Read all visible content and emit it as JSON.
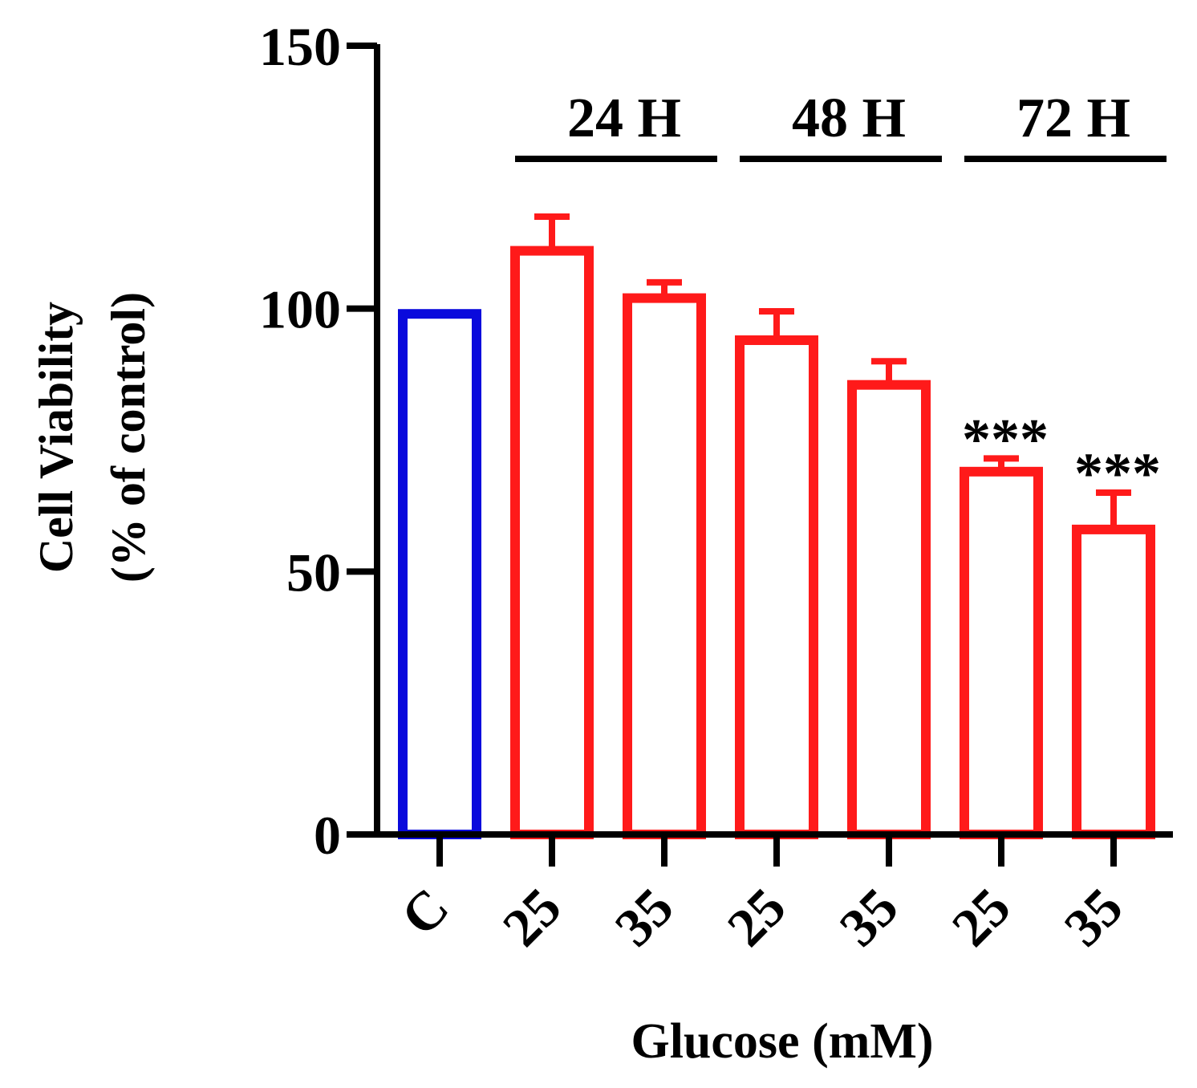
{
  "chart_data": {
    "type": "bar",
    "title": "",
    "ylabel_line1": "Cell Viability",
    "ylabel_line2": "(% of control)",
    "xlabel": "Glucose (mM)",
    "ylim": [
      0,
      150
    ],
    "yticks": [
      "0",
      "50",
      "100",
      "150"
    ],
    "categories": [
      "C",
      "25",
      "35",
      "25",
      "35",
      "25",
      "35"
    ],
    "values": [
      99,
      111,
      102,
      94,
      85.5,
      69,
      58
    ],
    "errors": [
      0,
      6.5,
      3,
      5.5,
      4.5,
      2.5,
      7
    ],
    "significance": [
      "",
      "",
      "",
      "",
      "",
      "***",
      "***"
    ],
    "bar_colors": [
      "#0a0adc",
      "#ff1a1a",
      "#ff1a1a",
      "#ff1a1a",
      "#ff1a1a",
      "#ff1a1a",
      "#ff1a1a"
    ],
    "groups": [
      {
        "label": "24 H",
        "start": 1,
        "end": 2
      },
      {
        "label": "48 H",
        "start": 3,
        "end": 4
      },
      {
        "label": "72 H",
        "start": 5,
        "end": 6
      }
    ]
  }
}
